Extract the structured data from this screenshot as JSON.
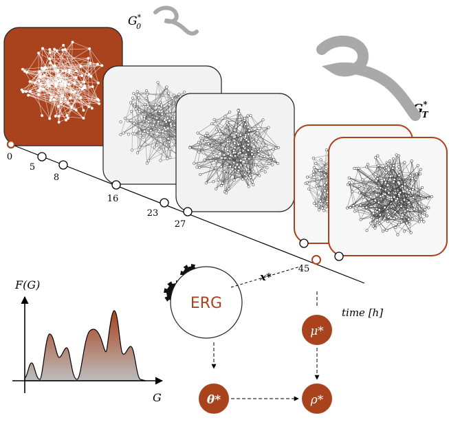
{
  "labels": {
    "g0_base": "G",
    "g0_sup": "*",
    "g0_sub": "0",
    "gt_base": "G",
    "gt_sup": "*",
    "gt_sub": "T",
    "time_axis": "time [h]",
    "x_star": "x*",
    "erg": "ERG",
    "mu_star": "μ*",
    "theta_star": "θ*",
    "rho_star": "ρ*",
    "fg_label": "F(G)",
    "g_axis": "G"
  },
  "timeline": {
    "ticks": [
      "0",
      "5",
      "8",
      "16",
      "23",
      "27",
      "45"
    ]
  },
  "colors": {
    "accent": "#a8431e",
    "accent_dark": "#8e3514",
    "panel_gray": "#f2f2f2",
    "worm": "#a9a9a9",
    "gear": "#111111"
  }
}
